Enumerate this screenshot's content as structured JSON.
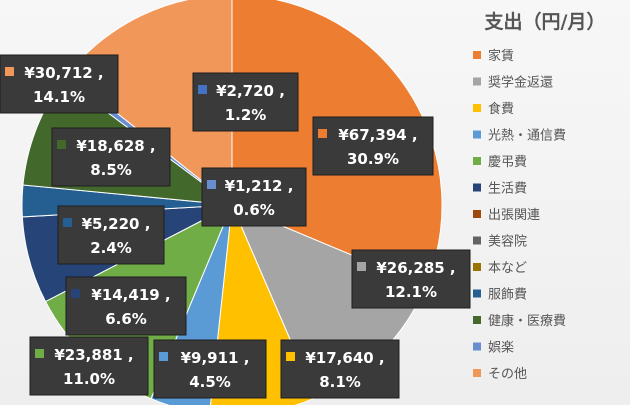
{
  "chart_data": {
    "type": "pie",
    "title": "支出（円/月）",
    "categories": [
      "家賃",
      "奨学金返還",
      "食費",
      "光熱・通信費",
      "慶弔費",
      "生活費",
      "出張関連",
      "美容院",
      "本など",
      "服飾費",
      "健康・医療費",
      "娯楽",
      "その他"
    ],
    "values": [
      67394,
      26285,
      17640,
      9911,
      23881,
      14419,
      0,
      0,
      0,
      5220,
      18628,
      1212,
      30712
    ],
    "amount_labels": [
      "¥67,394 ,",
      "¥26,285 ,",
      "¥17,640 ,",
      "¥9,911 ,",
      "¥23,881 ,",
      "¥14,419 ,",
      "",
      "",
      "",
      "¥5,220 ,",
      "¥18,628 ,",
      "¥1,212 ,",
      "¥30,712 ,"
    ],
    "percent_labels": [
      "30.9%",
      "12.1%",
      "8.1%",
      "4.5%",
      "11.0%",
      "6.6%",
      "",
      "",
      "",
      "2.4%",
      "8.5%",
      "0.6%",
      "14.1%"
    ],
    "extra_label": {
      "amount": "¥2,720 ,",
      "percent": "1.2%",
      "color": "#4472c4"
    },
    "colors": [
      "#ed7d31",
      "#a5a5a5",
      "#ffc000",
      "#5b9bd5",
      "#70ad47",
      "#264478",
      "#9e480e",
      "#636363",
      "#997300",
      "#255e91",
      "#43682b",
      "#698ed0",
      "#f1975a"
    ],
    "legend_position": "right"
  }
}
